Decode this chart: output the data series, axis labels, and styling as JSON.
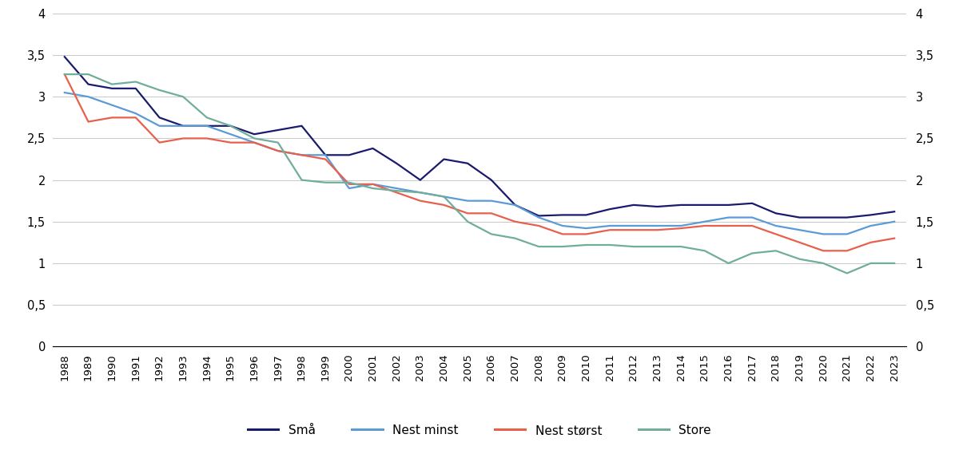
{
  "years": [
    1988,
    1989,
    1990,
    1991,
    1992,
    1993,
    1994,
    1995,
    1996,
    1997,
    1998,
    1999,
    2000,
    2001,
    2002,
    2003,
    2004,
    2005,
    2006,
    2007,
    2008,
    2009,
    2010,
    2011,
    2012,
    2013,
    2014,
    2015,
    2016,
    2017,
    2018,
    2019,
    2020,
    2021,
    2022,
    2023
  ],
  "sma": [
    3.48,
    3.15,
    3.1,
    3.1,
    2.75,
    2.65,
    2.65,
    2.65,
    2.55,
    2.6,
    2.65,
    2.3,
    2.3,
    2.38,
    2.2,
    2.0,
    2.25,
    2.2,
    2.0,
    1.7,
    1.57,
    1.58,
    1.58,
    1.65,
    1.7,
    1.68,
    1.7,
    1.7,
    1.7,
    1.72,
    1.6,
    1.55,
    1.55,
    1.55,
    1.58,
    1.62
  ],
  "nest_minst": [
    3.05,
    3.0,
    2.9,
    2.8,
    2.65,
    2.65,
    2.65,
    2.55,
    2.45,
    2.35,
    2.3,
    2.3,
    1.9,
    1.95,
    1.9,
    1.85,
    1.8,
    1.75,
    1.75,
    1.7,
    1.55,
    1.45,
    1.42,
    1.45,
    1.45,
    1.45,
    1.45,
    1.5,
    1.55,
    1.55,
    1.45,
    1.4,
    1.35,
    1.35,
    1.45,
    1.5
  ],
  "nest_storst": [
    3.27,
    2.7,
    2.75,
    2.75,
    2.45,
    2.5,
    2.5,
    2.45,
    2.45,
    2.35,
    2.3,
    2.25,
    1.95,
    1.95,
    1.85,
    1.75,
    1.7,
    1.6,
    1.6,
    1.5,
    1.45,
    1.35,
    1.35,
    1.4,
    1.4,
    1.4,
    1.42,
    1.45,
    1.45,
    1.45,
    1.35,
    1.25,
    1.15,
    1.15,
    1.25,
    1.3
  ],
  "store": [
    3.27,
    3.27,
    3.15,
    3.18,
    3.08,
    3.0,
    2.75,
    2.65,
    2.5,
    2.45,
    2.0,
    1.97,
    1.97,
    1.9,
    1.87,
    1.85,
    1.8,
    1.5,
    1.35,
    1.3,
    1.2,
    1.2,
    1.22,
    1.22,
    1.2,
    1.2,
    1.2,
    1.15,
    1.0,
    1.12,
    1.15,
    1.05,
    1.0,
    0.88,
    1.0,
    1.0
  ],
  "colors": {
    "sma": "#1a1a6e",
    "nest_minst": "#5b9bd5",
    "nest_storst": "#e8604c",
    "store": "#70ad9b"
  },
  "legend_labels": [
    "Små",
    "Nest minst",
    "Nest størst",
    "Store"
  ],
  "ylim": [
    0,
    4
  ],
  "yticks": [
    0,
    0.5,
    1,
    1.5,
    2,
    2.5,
    3,
    3.5,
    4
  ],
  "ytick_labels": [
    "0",
    "0,5",
    "1",
    "1,5",
    "2",
    "2,5",
    "3",
    "3,5",
    "4"
  ]
}
